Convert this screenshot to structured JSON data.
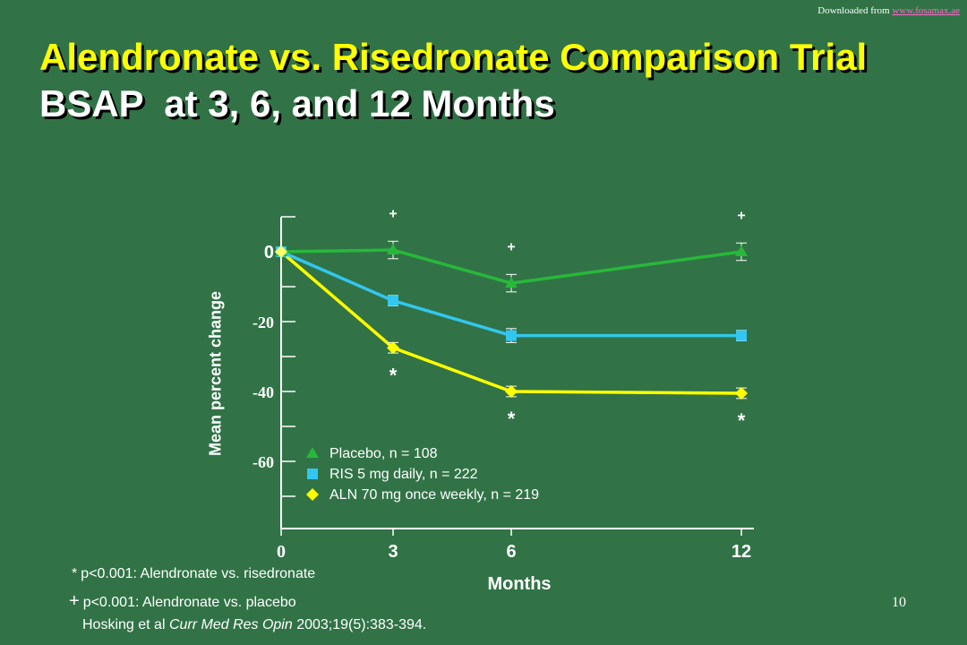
{
  "header": {
    "download_prefix": "Downloaded from ",
    "download_link": "www.fosamax.ae",
    "title_line1": "Alendronate vs. Risedronate Comparison Trial",
    "title_line2": "BSAP  at 3, 6, and 12 Months"
  },
  "chart_data": {
    "type": "line",
    "ylabel": "Mean percent change",
    "xlabel": "Months",
    "x": [
      0,
      3,
      6,
      12
    ],
    "x_ticks": [
      "0",
      "3",
      "6",
      "12"
    ],
    "y_ticks": [
      "0",
      "-20",
      "-40",
      "-60"
    ],
    "ylim": [
      -80,
      10
    ],
    "series": [
      {
        "name": "Placebo, n = 108",
        "marker": "triangle",
        "color": "#28b83a",
        "values": [
          0,
          0.5,
          -9,
          0
        ],
        "error": [
          0,
          2.5,
          2.5,
          2.5
        ],
        "annotations": [
          "",
          "+",
          "+",
          "+"
        ]
      },
      {
        "name": "RIS 5 mg daily, n = 222",
        "marker": "square",
        "color": "#33c6f0",
        "values": [
          0,
          -14,
          -24,
          -24
        ],
        "error": [
          0,
          1.5,
          2,
          1.5
        ],
        "annotations": [
          "",
          "",
          "",
          ""
        ]
      },
      {
        "name": "ALN 70 mg once weekly, n = 219",
        "marker": "diamond",
        "color": "#ffff00",
        "values": [
          0,
          -27.5,
          -40,
          -40.5
        ],
        "error": [
          0,
          1.5,
          1.5,
          1.5
        ],
        "annotations": [
          "",
          "*",
          "*",
          "*"
        ]
      }
    ],
    "grid": false,
    "legend_position": "bottom-left"
  },
  "footnotes": {
    "star_symbol": "*",
    "star_text": "p<0.001: Alendronate vs. risedronate",
    "plus_symbol": "+",
    "plus_text": "p<0.001: Alendronate vs. placebo",
    "citation_before": "Hosking et al ",
    "citation_italic": "Curr Med Res Opin",
    "citation_after": " 2003;19(5):383-394."
  },
  "page_number": "10"
}
